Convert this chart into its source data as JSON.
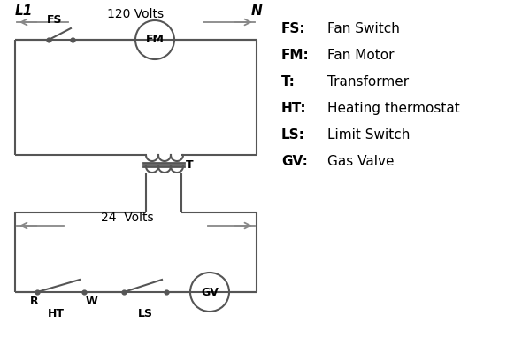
{
  "bg_color": "#ffffff",
  "line_color": "#555555",
  "arrow_color": "#888888",
  "text_color": "#000000",
  "legend_items": [
    [
      "FS:",
      "Fan Switch"
    ],
    [
      "FM:",
      "Fan Motor"
    ],
    [
      "T:",
      "Transformer"
    ],
    [
      "HT:",
      "Heating thermostat"
    ],
    [
      "LS:",
      "Limit Switch"
    ],
    [
      "GV:",
      "Gas Valve"
    ]
  ],
  "label_L1": "L1",
  "label_N": "N",
  "label_120V": "120 Volts",
  "label_24V": "24  Volts",
  "label_T": "T",
  "label_FS": "FS",
  "label_FM": "FM",
  "label_GV": "GV",
  "label_R": "R",
  "label_W": "W",
  "label_HT": "HT",
  "label_LS": "LS"
}
